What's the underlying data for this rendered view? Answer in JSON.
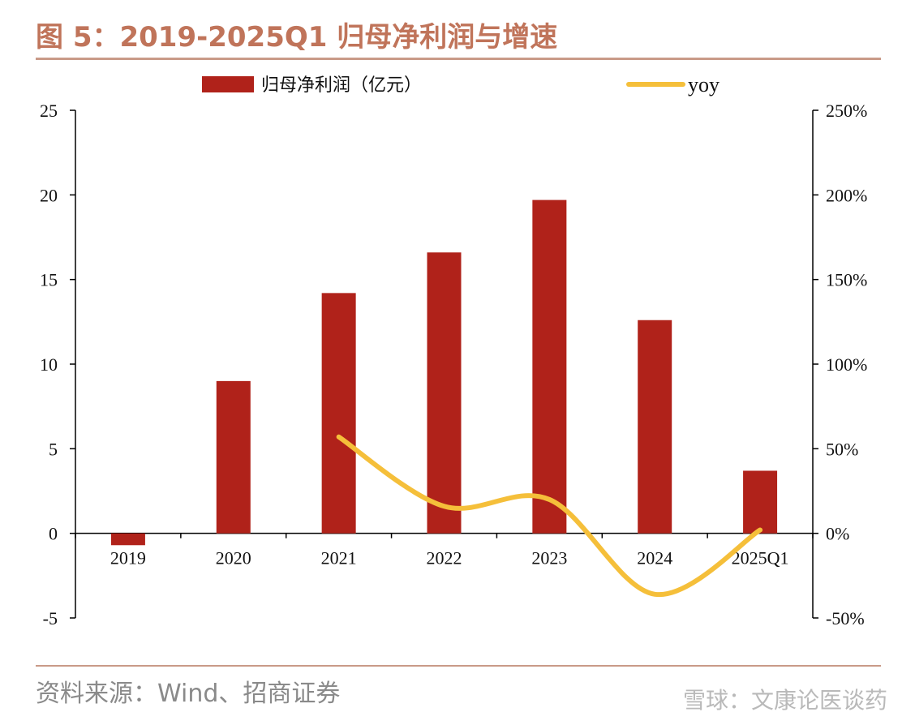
{
  "header": {
    "title": "图 5：2019-2025Q1 归母净利润与增速"
  },
  "footer": {
    "source": "资料来源：Wind、招商证券",
    "watermark": "雪球：文康论医谈药"
  },
  "colors": {
    "bar": "#B0221A",
    "line": "#F5BF3A",
    "accent": "#C0745A"
  },
  "chart_data": {
    "type": "bar",
    "categories": [
      "2019",
      "2020",
      "2021",
      "2022",
      "2023",
      "2024",
      "2025Q1"
    ],
    "series": [
      {
        "name": "归母净利润（亿元）",
        "type": "bar",
        "axis": "left",
        "values": [
          -0.7,
          9.0,
          14.2,
          16.6,
          19.7,
          12.6,
          3.7
        ]
      },
      {
        "name": "yoy",
        "type": "line",
        "axis": "right",
        "values": [
          null,
          null,
          57,
          16,
          20,
          -36,
          2
        ]
      }
    ],
    "y_left": {
      "min": -5,
      "max": 25,
      "ticks": [
        "-5",
        "0",
        "5",
        "10",
        "15",
        "20",
        "25"
      ],
      "tick_values": [
        -5,
        0,
        5,
        10,
        15,
        20,
        25
      ]
    },
    "y_right": {
      "min": -50,
      "max": 250,
      "ticks": [
        "-50%",
        "0%",
        "50%",
        "100%",
        "150%",
        "200%",
        "250%"
      ],
      "tick_values": [
        -50,
        0,
        50,
        100,
        150,
        200,
        250
      ]
    },
    "legend": "top",
    "grid": false
  }
}
